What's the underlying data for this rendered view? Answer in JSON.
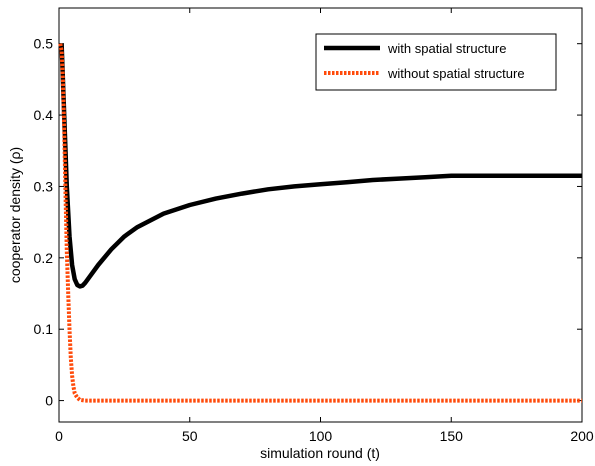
{
  "chart_data": {
    "type": "line",
    "xlabel": "simulation round (t)",
    "ylabel": "cooperator density (ρ)",
    "xlim": [
      0,
      200
    ],
    "ylim": [
      -0.03,
      0.55
    ],
    "x_ticks": [
      0,
      50,
      100,
      150,
      200
    ],
    "y_ticks": [
      0,
      0.1,
      0.2,
      0.3,
      0.4,
      0.5
    ],
    "x_tick_labels": [
      "0",
      "50",
      "100",
      "150",
      "200"
    ],
    "y_tick_labels": [
      "0",
      "0.1",
      "0.2",
      "0.3",
      "0.4",
      "0.5"
    ],
    "grid": false,
    "legend_position": "top-right",
    "series": [
      {
        "name": "with spatial structure",
        "color": "#000000",
        "style": "solid",
        "x": [
          1,
          2,
          3,
          4,
          5,
          6,
          7,
          8,
          9,
          10,
          12,
          15,
          20,
          25,
          30,
          40,
          50,
          60,
          70,
          80,
          90,
          100,
          110,
          120,
          130,
          140,
          150,
          160,
          170,
          180,
          190,
          200
        ],
        "y": [
          0.5,
          0.4,
          0.3,
          0.23,
          0.19,
          0.17,
          0.162,
          0.16,
          0.161,
          0.165,
          0.175,
          0.19,
          0.212,
          0.23,
          0.243,
          0.262,
          0.274,
          0.283,
          0.29,
          0.296,
          0.3,
          0.303,
          0.306,
          0.309,
          0.311,
          0.313,
          0.315,
          0.315,
          0.315,
          0.315,
          0.315,
          0.315
        ]
      },
      {
        "name": "without spatial structure",
        "color": "#ff4a0a",
        "style": "dotted",
        "x": [
          0.5,
          1,
          1.5,
          2,
          2.5,
          3,
          3.5,
          4,
          4.5,
          5,
          5.5,
          6,
          7,
          8,
          10,
          20,
          50,
          100,
          150,
          200
        ],
        "y": [
          0.5,
          0.49,
          0.45,
          0.38,
          0.29,
          0.21,
          0.15,
          0.1,
          0.06,
          0.035,
          0.02,
          0.01,
          0.004,
          0.001,
          0,
          0,
          0,
          0,
          0,
          0
        ]
      }
    ]
  }
}
